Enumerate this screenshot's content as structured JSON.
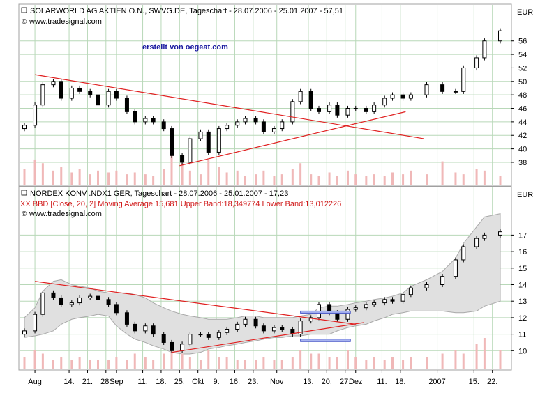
{
  "credit": "erstellt von oegeat.com",
  "x_axis": {
    "ticks": [
      {
        "label": "Aug",
        "date": "2006-08-01"
      },
      {
        "label": "14.",
        "date": "2006-08-14"
      },
      {
        "label": "21.",
        "date": "2006-08-21"
      },
      {
        "label": "28.",
        "date": "2006-08-28"
      },
      {
        "label": "Sep",
        "date": "2006-09-01"
      },
      {
        "label": "11.",
        "date": "2006-09-11"
      },
      {
        "label": "18.",
        "date": "2006-09-18"
      },
      {
        "label": "25.",
        "date": "2006-09-25"
      },
      {
        "label": "Okt",
        "date": "2006-10-02"
      },
      {
        "label": "9.",
        "date": "2006-10-09"
      },
      {
        "label": "16.",
        "date": "2006-10-16"
      },
      {
        "label": "23.",
        "date": "2006-10-23"
      },
      {
        "label": "Nov",
        "date": "2006-11-01"
      },
      {
        "label": "13.",
        "date": "2006-11-13"
      },
      {
        "label": "20.",
        "date": "2006-11-20"
      },
      {
        "label": "27.",
        "date": "2006-11-27"
      },
      {
        "label": "Dez",
        "date": "2006-12-01"
      },
      {
        "label": "11.",
        "date": "2006-12-11"
      },
      {
        "label": "18.",
        "date": "2006-12-18"
      },
      {
        "label": "2007",
        "date": "2007-01-01"
      },
      {
        "label": "15.",
        "date": "2007-01-15"
      },
      {
        "label": "22.",
        "date": "2007-01-22"
      }
    ],
    "range": [
      "2006-07-28",
      "2007-01-25"
    ]
  },
  "chart_data": [
    {
      "type": "candlestick",
      "title": "SOLARWORLD AG AKTIEN O.N., SWVG.DE, Tageschart - 28.07.2006 - 25.01.2007 - 57,51",
      "source": "www.tradesignal.com",
      "currency": "EUR",
      "ylim": [
        35,
        60
      ],
      "yticks": [
        "38",
        "40",
        "42",
        "44",
        "46",
        "48",
        "50",
        "52",
        "54",
        "56"
      ],
      "grid": true,
      "x": [
        "2006-07-28",
        "2006-08-01",
        "2006-08-04",
        "2006-08-08",
        "2006-08-11",
        "2006-08-15",
        "2006-08-18",
        "2006-08-22",
        "2006-08-25",
        "2006-08-29",
        "2006-09-01",
        "2006-09-05",
        "2006-09-08",
        "2006-09-12",
        "2006-09-15",
        "2006-09-19",
        "2006-09-22",
        "2006-09-26",
        "2006-09-29",
        "2006-10-03",
        "2006-10-06",
        "2006-10-10",
        "2006-10-13",
        "2006-10-17",
        "2006-10-20",
        "2006-10-24",
        "2006-10-27",
        "2006-10-31",
        "2006-11-03",
        "2006-11-07",
        "2006-11-10",
        "2006-11-14",
        "2006-11-17",
        "2006-11-21",
        "2006-11-24",
        "2006-11-28",
        "2006-12-01",
        "2006-12-05",
        "2006-12-08",
        "2006-12-12",
        "2006-12-15",
        "2006-12-19",
        "2006-12-22",
        "2006-12-28",
        "2007-01-03",
        "2007-01-08",
        "2007-01-11",
        "2007-01-16",
        "2007-01-19",
        "2007-01-25"
      ],
      "close": [
        43.5,
        46.5,
        49.5,
        50.0,
        47.5,
        49.0,
        48.5,
        48.0,
        46.5,
        48.5,
        47.5,
        45.5,
        44.0,
        44.5,
        44.0,
        43.0,
        39.0,
        38.0,
        41.5,
        42.5,
        39.5,
        43.0,
        43.5,
        44.0,
        44.5,
        44.0,
        42.5,
        43.0,
        44.0,
        47.0,
        48.5,
        46.0,
        45.5,
        46.5,
        45.0,
        46.0,
        46.0,
        45.5,
        46.5,
        47.5,
        48.0,
        47.5,
        48.0,
        49.5,
        48.5,
        48.5,
        52.0,
        53.5,
        56.0,
        57.5
      ],
      "volume": [
        9,
        14,
        12,
        8,
        10,
        7,
        9,
        6,
        8,
        7,
        8,
        6,
        7,
        6,
        5,
        9,
        17,
        12,
        8,
        6,
        14,
        10,
        7,
        8,
        5,
        6,
        8,
        5,
        6,
        9,
        12,
        6,
        5,
        7,
        5,
        8,
        6,
        5,
        6,
        5,
        7,
        6,
        8,
        6,
        13,
        7,
        6,
        9,
        8,
        5
      ],
      "annotations": [
        {
          "type": "trendline",
          "from": [
            "2006-08-01",
            51.0
          ],
          "to": [
            "2006-12-27",
            41.5
          ]
        },
        {
          "type": "trendline",
          "from": [
            "2006-09-25",
            37.5
          ],
          "to": [
            "2006-12-20",
            45.5
          ]
        }
      ]
    },
    {
      "type": "candlestick",
      "title": "NORDEX KONV .NDX1 GER, Tageschart - 28.07.2006 - 25.01.2007 - 17,23",
      "indicator": "XX BBD [Close, 20, 2] Moving Average:15,681 Upper Band:18,349774 Lower Band:13,012226",
      "source": "www.tradesignal.com",
      "currency": "EUR",
      "ylim": [
        9,
        19
      ],
      "yticks": [
        "10",
        "11",
        "12",
        "13",
        "14",
        "15",
        "16",
        "17"
      ],
      "grid": true,
      "x": [
        "2006-07-28",
        "2006-08-01",
        "2006-08-04",
        "2006-08-08",
        "2006-08-11",
        "2006-08-15",
        "2006-08-18",
        "2006-08-22",
        "2006-08-25",
        "2006-08-29",
        "2006-09-01",
        "2006-09-05",
        "2006-09-08",
        "2006-09-12",
        "2006-09-15",
        "2006-09-19",
        "2006-09-22",
        "2006-09-26",
        "2006-09-29",
        "2006-10-03",
        "2006-10-06",
        "2006-10-10",
        "2006-10-13",
        "2006-10-17",
        "2006-10-20",
        "2006-10-24",
        "2006-10-27",
        "2006-10-31",
        "2006-11-03",
        "2006-11-07",
        "2006-11-10",
        "2006-11-14",
        "2006-11-17",
        "2006-11-21",
        "2006-11-24",
        "2006-11-28",
        "2006-12-01",
        "2006-12-05",
        "2006-12-08",
        "2006-12-12",
        "2006-12-15",
        "2006-12-19",
        "2006-12-22",
        "2006-12-28",
        "2007-01-03",
        "2007-01-08",
        "2007-01-11",
        "2007-01-16",
        "2007-01-19",
        "2007-01-25"
      ],
      "close": [
        11.2,
        12.2,
        13.5,
        13.2,
        12.8,
        12.9,
        13.2,
        13.3,
        13.1,
        12.8,
        12.3,
        11.6,
        11.2,
        11.5,
        11.0,
        10.5,
        10.0,
        10.4,
        11.0,
        11.0,
        10.8,
        11.1,
        11.3,
        11.6,
        11.9,
        11.5,
        11.2,
        11.4,
        11.3,
        11.0,
        11.8,
        12.0,
        12.8,
        12.3,
        11.9,
        12.5,
        12.6,
        12.8,
        12.9,
        13.1,
        13.0,
        13.4,
        13.8,
        14.0,
        14.5,
        15.5,
        16.3,
        16.8,
        17.0,
        17.2
      ],
      "volume": [
        4,
        6,
        5,
        3,
        4,
        3,
        4,
        3,
        3,
        3,
        4,
        3,
        5,
        4,
        3,
        5,
        8,
        5,
        4,
        3,
        6,
        4,
        4,
        3,
        3,
        3,
        4,
        3,
        3,
        4,
        6,
        5,
        5,
        4,
        4,
        6,
        4,
        3,
        4,
        3,
        4,
        3,
        4,
        4,
        5,
        6,
        5,
        8,
        10,
        6
      ],
      "bollinger_upper": [
        12.0,
        12.6,
        13.6,
        14.2,
        14.3,
        14.0,
        13.9,
        13.8,
        13.6,
        13.5,
        13.5,
        13.5,
        13.4,
        13.2,
        12.9,
        12.6,
        12.4,
        12.2,
        12.1,
        12.0,
        11.9,
        11.9,
        11.9,
        12.0,
        12.1,
        12.1,
        12.0,
        12.0,
        12.0,
        12.0,
        12.1,
        12.2,
        12.6,
        12.7,
        12.7,
        12.8,
        12.9,
        13.0,
        13.1,
        13.2,
        13.3,
        13.5,
        13.9,
        14.3,
        14.8,
        15.6,
        16.5,
        17.5,
        18.1,
        18.3
      ],
      "bollinger_lower": [
        10.8,
        10.9,
        11.0,
        11.2,
        11.6,
        11.9,
        12.0,
        12.1,
        12.2,
        12.1,
        11.5,
        11.0,
        10.7,
        10.5,
        10.3,
        10.1,
        9.9,
        9.8,
        9.8,
        9.9,
        10.1,
        10.2,
        10.3,
        10.4,
        10.5,
        10.6,
        10.7,
        10.8,
        10.8,
        10.9,
        10.9,
        11.0,
        11.0,
        11.0,
        11.2,
        11.4,
        11.5,
        11.6,
        11.8,
        12.0,
        12.2,
        12.3,
        12.4,
        12.4,
        12.4,
        12.3,
        12.3,
        12.4,
        12.7,
        13.0
      ],
      "annotations": [
        {
          "type": "trendline",
          "from": [
            "2006-08-01",
            14.2
          ],
          "to": [
            "2006-12-01",
            11.6
          ]
        },
        {
          "type": "trendline",
          "from": [
            "2006-09-22",
            9.9
          ],
          "to": [
            "2006-12-04",
            11.7
          ]
        },
        {
          "type": "box",
          "from": [
            "2006-11-10",
            12.3
          ],
          "to": [
            "2006-11-29",
            12.4
          ],
          "color": "#4858c8"
        },
        {
          "type": "box",
          "from": [
            "2006-11-10",
            10.55
          ],
          "to": [
            "2006-11-29",
            10.7
          ],
          "color": "#4858c8"
        }
      ]
    }
  ]
}
